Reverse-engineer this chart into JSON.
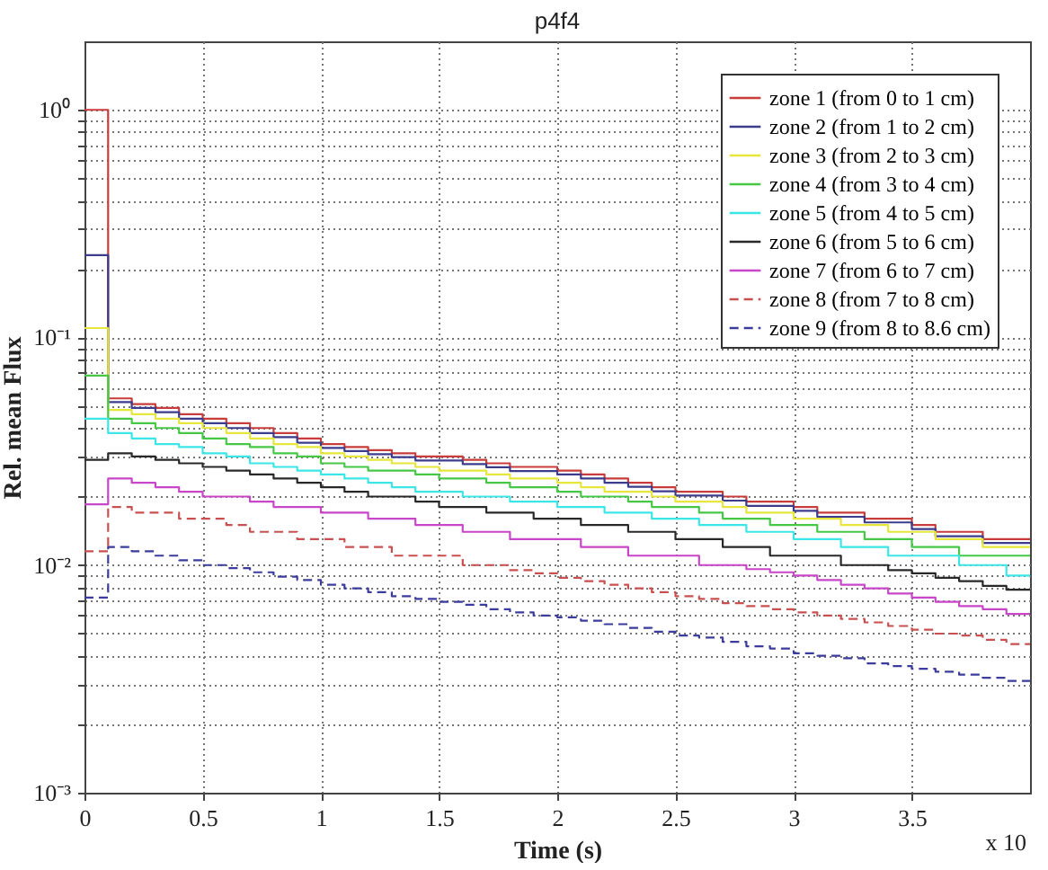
{
  "chart_data": {
    "type": "step",
    "title": "p4f4",
    "xlabel": "Time (s)",
    "ylabel": "Rel. mean Flux",
    "annotations": [
      "x 10"
    ],
    "x": [
      0,
      0.1,
      0.2,
      0.3,
      0.4,
      0.5,
      0.6,
      0.7,
      0.8,
      0.9,
      1.0,
      1.1,
      1.2,
      1.3,
      1.4,
      1.5,
      1.6,
      1.7,
      1.8,
      1.9,
      2.0,
      2.1,
      2.2,
      2.3,
      2.4,
      2.5,
      2.6,
      2.7,
      2.8,
      2.9,
      3.0,
      3.1,
      3.2,
      3.3,
      3.4,
      3.5,
      3.6,
      3.7,
      3.8,
      3.9,
      4.0
    ],
    "series": [
      {
        "name": "zone 1 (from 0 to 1 cm)",
        "color": "#c83c3c",
        "line_style": "solid",
        "values": [
          1.0,
          0.054,
          0.051,
          0.049,
          0.046,
          0.044,
          0.042,
          0.04,
          0.038,
          0.036,
          0.034,
          0.033,
          0.032,
          0.031,
          0.03,
          0.03,
          0.029,
          0.028,
          0.027,
          0.027,
          0.026,
          0.025,
          0.024,
          0.023,
          0.022,
          0.021,
          0.021,
          0.02,
          0.019,
          0.019,
          0.018,
          0.017,
          0.017,
          0.016,
          0.016,
          0.015,
          0.014,
          0.014,
          0.013,
          0.013,
          0.013
        ]
      },
      {
        "name": "zone 2 (from 1 to 2 cm)",
        "color": "#3c3c8c",
        "line_style": "solid",
        "values": [
          0.23,
          0.052,
          0.049,
          0.047,
          0.044,
          0.042,
          0.04,
          0.038,
          0.0365,
          0.0345,
          0.0327,
          0.0317,
          0.0307,
          0.0298,
          0.0288,
          0.0288,
          0.0278,
          0.0269,
          0.0259,
          0.0259,
          0.025,
          0.024,
          0.023,
          0.0221,
          0.0211,
          0.0202,
          0.0202,
          0.0192,
          0.0182,
          0.0182,
          0.0173,
          0.0163,
          0.0163,
          0.0154,
          0.0154,
          0.0144,
          0.0134,
          0.0134,
          0.0125,
          0.0125,
          0.0125
        ]
      },
      {
        "name": "zone 3 (from 2 to 3 cm)",
        "color": "#e6e63c",
        "line_style": "solid",
        "values": [
          0.11,
          0.048,
          0.046,
          0.044,
          0.042,
          0.04,
          0.038,
          0.036,
          0.034,
          0.033,
          0.031,
          0.03,
          0.029,
          0.028,
          0.027,
          0.026,
          0.026,
          0.025,
          0.024,
          0.024,
          0.023,
          0.022,
          0.021,
          0.021,
          0.02,
          0.019,
          0.019,
          0.018,
          0.017,
          0.017,
          0.016,
          0.016,
          0.015,
          0.015,
          0.014,
          0.014,
          0.013,
          0.013,
          0.012,
          0.012,
          0.012
        ]
      },
      {
        "name": "zone 4 (from 3 to 4 cm)",
        "color": "#46c846",
        "line_style": "solid",
        "values": [
          0.068,
          0.044,
          0.042,
          0.04,
          0.038,
          0.036,
          0.034,
          0.033,
          0.031,
          0.03,
          0.028,
          0.027,
          0.026,
          0.026,
          0.025,
          0.024,
          0.024,
          0.023,
          0.022,
          0.022,
          0.021,
          0.02,
          0.02,
          0.019,
          0.018,
          0.018,
          0.017,
          0.016,
          0.016,
          0.015,
          0.015,
          0.014,
          0.014,
          0.013,
          0.013,
          0.012,
          0.012,
          0.011,
          0.011,
          0.011,
          0.011
        ]
      },
      {
        "name": "zone 5 (from 4 to 5 cm)",
        "color": "#3ce6e6",
        "line_style": "solid",
        "values": [
          0.044,
          0.038,
          0.036,
          0.034,
          0.033,
          0.031,
          0.03,
          0.028,
          0.027,
          0.026,
          0.025,
          0.024,
          0.023,
          0.022,
          0.021,
          0.021,
          0.02,
          0.02,
          0.019,
          0.019,
          0.018,
          0.018,
          0.017,
          0.017,
          0.016,
          0.016,
          0.015,
          0.015,
          0.014,
          0.014,
          0.013,
          0.013,
          0.012,
          0.012,
          0.011,
          0.011,
          0.011,
          0.01,
          0.01,
          0.009,
          0.009
        ]
      },
      {
        "name": "zone 6 (from 5 to 6 cm)",
        "color": "#282828",
        "line_style": "solid",
        "values": [
          0.029,
          0.031,
          0.03,
          0.029,
          0.028,
          0.027,
          0.026,
          0.025,
          0.024,
          0.023,
          0.022,
          0.021,
          0.02,
          0.02,
          0.019,
          0.018,
          0.018,
          0.017,
          0.017,
          0.016,
          0.016,
          0.015,
          0.015,
          0.014,
          0.014,
          0.013,
          0.013,
          0.012,
          0.012,
          0.011,
          0.011,
          0.011,
          0.01,
          0.01,
          0.0095,
          0.0092,
          0.0088,
          0.0085,
          0.0081,
          0.0078,
          0.0078
        ]
      },
      {
        "name": "zone 7 (from 6 to 7 cm)",
        "color": "#c846c8",
        "line_style": "solid",
        "values": [
          0.0185,
          0.024,
          0.023,
          0.022,
          0.021,
          0.02,
          0.02,
          0.019,
          0.018,
          0.018,
          0.017,
          0.017,
          0.016,
          0.016,
          0.015,
          0.015,
          0.014,
          0.014,
          0.013,
          0.013,
          0.013,
          0.012,
          0.012,
          0.011,
          0.011,
          0.011,
          0.01,
          0.01,
          0.0096,
          0.0093,
          0.009,
          0.0086,
          0.0082,
          0.0079,
          0.0075,
          0.0072,
          0.0069,
          0.0066,
          0.0064,
          0.0061,
          0.0061
        ]
      },
      {
        "name": "zone 8 (from 7 to 8 cm)",
        "color": "#c85050",
        "line_style": "dashed",
        "values": [
          0.0115,
          0.018,
          0.017,
          0.017,
          0.016,
          0.016,
          0.015,
          0.014,
          0.014,
          0.013,
          0.013,
          0.012,
          0.012,
          0.011,
          0.011,
          0.011,
          0.01,
          0.01,
          0.0095,
          0.0092,
          0.0088,
          0.0085,
          0.0082,
          0.0079,
          0.0076,
          0.0073,
          0.0071,
          0.0068,
          0.0066,
          0.0064,
          0.0062,
          0.006,
          0.0058,
          0.0056,
          0.0054,
          0.0052,
          0.005,
          0.0049,
          0.0047,
          0.0045,
          0.0045
        ]
      },
      {
        "name": "zone 9 (from 8 to 8.6 cm)",
        "color": "#3c3c9c",
        "line_style": "dashed",
        "values": [
          0.0072,
          0.012,
          0.0115,
          0.011,
          0.0105,
          0.01,
          0.0097,
          0.0093,
          0.0089,
          0.0086,
          0.0082,
          0.0079,
          0.0076,
          0.0073,
          0.0071,
          0.0069,
          0.0067,
          0.0064,
          0.0062,
          0.006,
          0.0059,
          0.0057,
          0.0055,
          0.0053,
          0.0051,
          0.0049,
          0.0048,
          0.0046,
          0.0044,
          0.0043,
          0.0041,
          0.004,
          0.0039,
          0.0037,
          0.0036,
          0.0035,
          0.0034,
          0.0033,
          0.0032,
          0.0031,
          0.003
        ]
      }
    ],
    "xlim": [
      0,
      4
    ],
    "xticks": [
      0,
      0.5,
      1,
      1.5,
      2,
      2.5,
      3,
      3.5
    ],
    "log": true,
    "ylim": [
      0.001,
      2
    ],
    "yticks": [
      {
        "value": 0.001,
        "label": "10⁻³"
      },
      {
        "value": 0.002,
        "label": null
      },
      {
        "value": 0.003,
        "label": null
      },
      {
        "value": 0.004,
        "label": null
      },
      {
        "value": 0.005,
        "label": null
      },
      {
        "value": 0.006,
        "label": null
      },
      {
        "value": 0.007,
        "label": null
      },
      {
        "value": 0.008,
        "label": null
      },
      {
        "value": 0.009,
        "label": null
      },
      {
        "value": 0.01,
        "label": "10⁻²"
      },
      {
        "value": 0.02,
        "label": null
      },
      {
        "value": 0.03,
        "label": null
      },
      {
        "value": 0.04,
        "label": null
      },
      {
        "value": 0.05,
        "label": null
      },
      {
        "value": 0.06,
        "label": null
      },
      {
        "value": 0.07,
        "label": null
      },
      {
        "value": 0.08,
        "label": null
      },
      {
        "value": 0.09,
        "label": null
      },
      {
        "value": 0.1,
        "label": "10⁻¹"
      },
      {
        "value": 0.2,
        "label": null
      },
      {
        "value": 0.3,
        "label": null
      },
      {
        "value": 0.4,
        "label": null
      },
      {
        "value": 0.5,
        "label": null
      },
      {
        "value": 0.6,
        "label": null
      },
      {
        "value": 0.7,
        "label": null
      },
      {
        "value": 0.8,
        "label": null
      },
      {
        "value": 0.9,
        "label": null
      },
      {
        "value": 1,
        "label": "10⁰"
      }
    ],
    "grid": true,
    "legend": "top right"
  }
}
